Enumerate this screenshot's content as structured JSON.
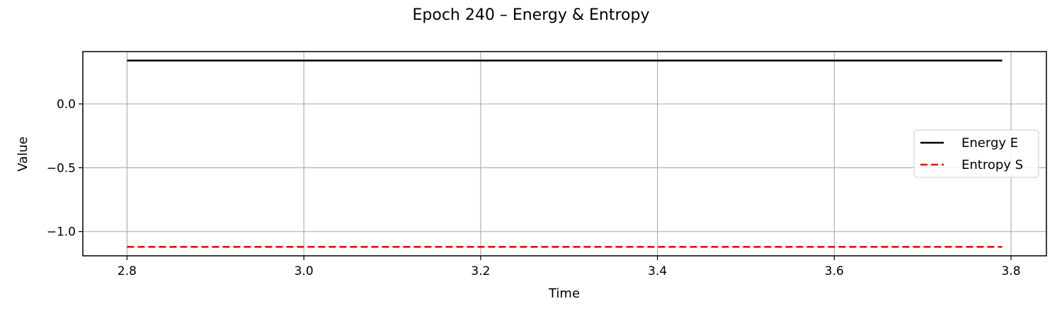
{
  "chart_data": {
    "type": "line",
    "title": "Epoch 240 – Energy & Entropy",
    "xlabel": "Time",
    "ylabel": "Value",
    "xlim": [
      2.75,
      3.84
    ],
    "ylim": [
      -1.19,
      0.41
    ],
    "xticks": [
      2.8,
      3.0,
      3.2,
      3.4,
      3.6,
      3.8
    ],
    "xtick_labels": [
      "2.8",
      "3.0",
      "3.2",
      "3.4",
      "3.6",
      "3.8"
    ],
    "yticks": [
      0.0,
      -0.5,
      -1.0
    ],
    "ytick_labels": [
      "0.0",
      "−0.5",
      "−1.0"
    ],
    "grid": true,
    "legend_position": "center-right",
    "series": [
      {
        "name": "Energy E",
        "x": [
          2.8,
          3.79
        ],
        "y": [
          0.34,
          0.34
        ],
        "color": "#000000",
        "style": "solid"
      },
      {
        "name": "Entropy S",
        "x": [
          2.8,
          3.79
        ],
        "y": [
          -1.12,
          -1.12
        ],
        "color": "#ff0000",
        "style": "dashed"
      }
    ]
  }
}
